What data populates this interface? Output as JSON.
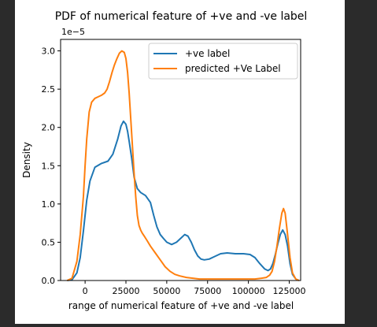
{
  "chart_data": {
    "type": "line",
    "title": "PDF of numerical feature of +ve and -ve label",
    "xlabel": "range of numerical feature of +ve and -ve label",
    "ylabel": "Density",
    "y_multiplier": "1e−5",
    "xlim": [
      -15000,
      132000
    ],
    "ylim": [
      0,
      3.15
    ],
    "xticks": [
      0,
      25000,
      50000,
      75000,
      100000,
      125000
    ],
    "xtick_labels": [
      "0",
      "25000",
      "50000",
      "75000",
      "100000",
      "125000"
    ],
    "yticks": [
      0.0,
      0.5,
      1.0,
      1.5,
      2.0,
      2.5,
      3.0
    ],
    "ytick_labels": [
      "0.0",
      "0.5",
      "1.0",
      "1.5",
      "2.0",
      "2.5",
      "3.0"
    ],
    "grid": false,
    "legend": "top-right",
    "series": [
      {
        "name": "+ve label",
        "color": "#1f77b4",
        "x": [
          -11000,
          -8000,
          -5000,
          -3000,
          -1000,
          0,
          1000,
          3000,
          6000,
          10000,
          14000,
          17000,
          20000,
          22000,
          23500,
          25000,
          26000,
          27000,
          28500,
          30000,
          32000,
          34000,
          37000,
          40000,
          42000,
          44000,
          46000,
          48000,
          50000,
          53000,
          56000,
          59000,
          61000,
          63000,
          65000,
          67000,
          69000,
          71000,
          73000,
          76000,
          79000,
          83000,
          87000,
          92000,
          97000,
          101000,
          104000,
          107000,
          110000,
          112000,
          113500,
          115000,
          116500,
          118000,
          119500,
          121000,
          122500,
          124000,
          125500,
          127000,
          129000,
          131000
        ],
        "values": [
          0.0,
          0.01,
          0.1,
          0.3,
          0.65,
          0.85,
          1.05,
          1.3,
          1.48,
          1.53,
          1.56,
          1.65,
          1.85,
          2.02,
          2.08,
          2.04,
          1.95,
          1.82,
          1.6,
          1.35,
          1.2,
          1.15,
          1.11,
          1.02,
          0.85,
          0.7,
          0.6,
          0.55,
          0.5,
          0.47,
          0.5,
          0.56,
          0.6,
          0.58,
          0.5,
          0.4,
          0.32,
          0.28,
          0.27,
          0.28,
          0.31,
          0.35,
          0.36,
          0.35,
          0.35,
          0.34,
          0.3,
          0.22,
          0.15,
          0.13,
          0.15,
          0.22,
          0.34,
          0.48,
          0.6,
          0.66,
          0.6,
          0.45,
          0.22,
          0.08,
          0.02,
          0.0
        ]
      },
      {
        "name": "predicted +Ve Label",
        "color": "#ff7f0e",
        "x": [
          -11000,
          -8000,
          -5000,
          -3000,
          -1000,
          0,
          1000,
          2500,
          4000,
          6000,
          8000,
          10000,
          12000,
          13500,
          15000,
          16500,
          18000,
          19500,
          21000,
          22500,
          24000,
          25000,
          26000,
          27000,
          28000,
          29000,
          30000,
          31000,
          32000,
          33000,
          34000,
          35000,
          36500,
          38000,
          40000,
          43000,
          46000,
          49000,
          52000,
          55000,
          58000,
          62000,
          66000,
          70000,
          75000,
          80000,
          86000,
          92000,
          98000,
          104000,
          108000,
          111000,
          113000,
          114500,
          116000,
          117500,
          119000,
          120500,
          121500,
          122500,
          124000,
          125500,
          127000,
          129000,
          131000
        ],
        "values": [
          0.0,
          0.03,
          0.25,
          0.6,
          1.1,
          1.5,
          1.85,
          2.2,
          2.33,
          2.38,
          2.4,
          2.42,
          2.45,
          2.5,
          2.6,
          2.72,
          2.82,
          2.9,
          2.97,
          3.0,
          2.98,
          2.9,
          2.72,
          2.45,
          2.1,
          1.75,
          1.4,
          1.1,
          0.85,
          0.72,
          0.66,
          0.62,
          0.57,
          0.52,
          0.45,
          0.36,
          0.27,
          0.18,
          0.12,
          0.08,
          0.06,
          0.04,
          0.03,
          0.02,
          0.02,
          0.02,
          0.02,
          0.02,
          0.02,
          0.02,
          0.03,
          0.04,
          0.07,
          0.12,
          0.25,
          0.45,
          0.68,
          0.88,
          0.94,
          0.88,
          0.6,
          0.3,
          0.1,
          0.02,
          0.0
        ]
      }
    ]
  }
}
